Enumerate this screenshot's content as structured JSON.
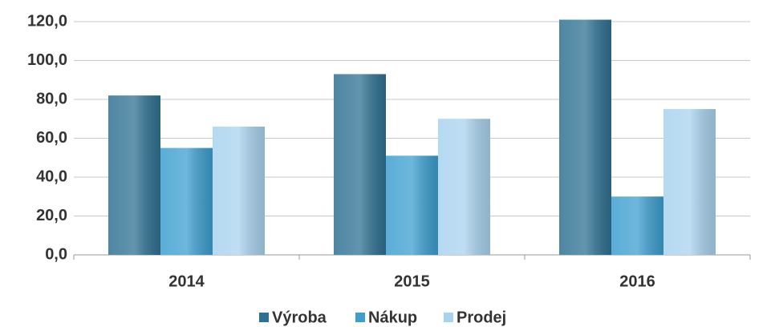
{
  "chart_data": {
    "type": "bar",
    "categories": [
      "2014",
      "2015",
      "2016"
    ],
    "series": [
      {
        "name": "Výroba",
        "color": "#2f7192",
        "values": [
          82,
          93,
          121
        ]
      },
      {
        "name": "Nákup",
        "color": "#3d9fd0",
        "values": [
          55,
          51,
          30
        ]
      },
      {
        "name": "Prodej",
        "color": "#a8d3ee",
        "values": [
          66,
          70,
          75
        ]
      }
    ],
    "ylim": [
      0,
      120
    ],
    "yticks": [
      {
        "value": 0,
        "label": "0,0"
      },
      {
        "value": 20,
        "label": "20,0"
      },
      {
        "value": 40,
        "label": "40,0"
      },
      {
        "value": 60,
        "label": "60,0"
      },
      {
        "value": 80,
        "label": "80,0"
      },
      {
        "value": 100,
        "label": "100,0"
      },
      {
        "value": 120,
        "label": "120,0"
      }
    ],
    "grid": true,
    "legend": "bottom"
  }
}
